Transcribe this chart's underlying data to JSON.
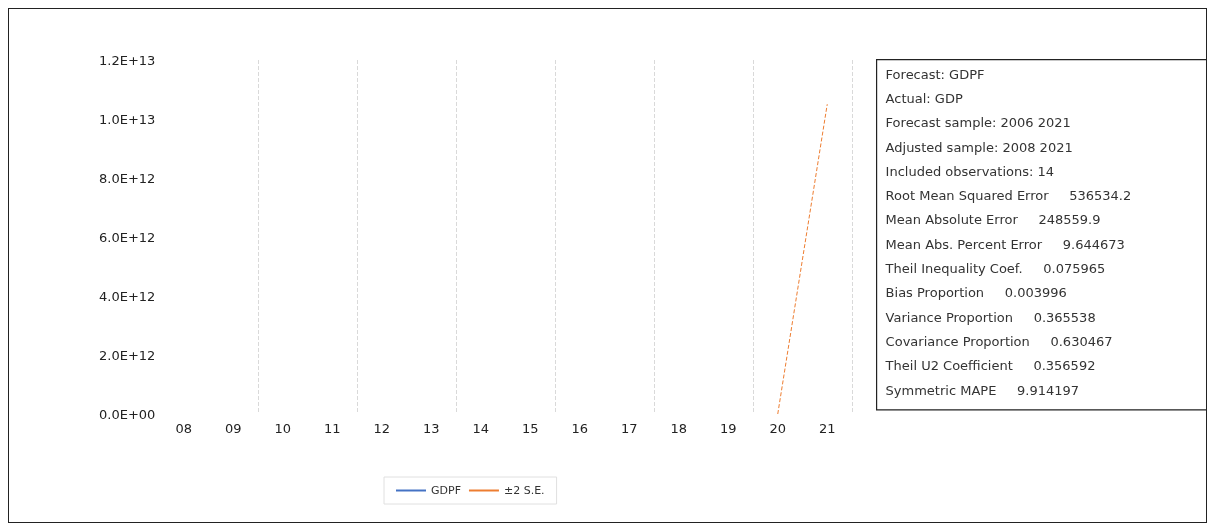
{
  "chart_data": {
    "type": "line",
    "categories": [
      "08",
      "09",
      "10",
      "11",
      "12",
      "13",
      "14",
      "15",
      "16",
      "17",
      "18",
      "19",
      "20",
      "21"
    ],
    "series": [
      {
        "name": "GDPF",
        "color": "#4472c4",
        "line_style": "solid",
        "values": [
          null,
          null,
          null,
          null,
          null,
          null,
          null,
          null,
          null,
          null,
          null,
          null,
          null,
          null
        ]
      },
      {
        "name": "±2 S.E.",
        "color": "#ed7d31",
        "line_style": "dashed",
        "values": [
          null,
          null,
          null,
          null,
          null,
          null,
          null,
          null,
          null,
          null,
          null,
          null,
          0,
          10500000000000
        ]
      }
    ],
    "ylim": [
      0,
      12000000000000
    ],
    "yticks": [
      {
        "value": 0,
        "label": "0.0E+00"
      },
      {
        "value": 2000000000000,
        "label": "2.0E+12"
      },
      {
        "value": 4000000000000,
        "label": "4.0E+12"
      },
      {
        "value": 6000000000000,
        "label": "6.0E+12"
      },
      {
        "value": 8000000000000,
        "label": "8.0E+12"
      },
      {
        "value": 10000000000000,
        "label": "1.0E+13"
      },
      {
        "value": 12000000000000,
        "label": "1.2E+13"
      }
    ],
    "grid": "x",
    "legend": "bottom",
    "marker": "none",
    "annotations": [
      "Forecast: GDPF",
      "Actual: GDP",
      "Forecast sample: 2006 2021",
      "Adjusted sample: 2008 2021",
      "Included observations: 14",
      "Root Mean Squared Error     536534.2",
      "Mean Absolute Error     248559.9",
      "Mean Abs. Percent Error     9.644673",
      "Theil Inequality Coef.     0.075965",
      "Bias Proportion     0.003996",
      "Variance Proportion     0.365538",
      "Covariance Proportion     0.630467",
      "Theil U2 Coefficient     0.356592",
      "Symmetric MAPE     9.914197"
    ]
  }
}
